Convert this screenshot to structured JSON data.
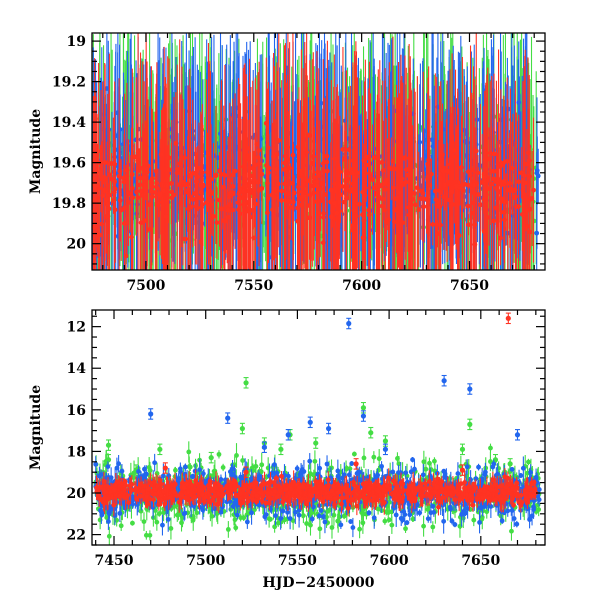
{
  "chart_data": [
    {
      "id": "top",
      "type": "scatter",
      "title": "",
      "xlabel": "",
      "ylabel": "Magnitude",
      "xlim": [
        7475,
        7685
      ],
      "ylim": [
        20.13,
        18.96
      ],
      "y_inverted": true,
      "x_ticks": [
        7500,
        7550,
        7600,
        7650
      ],
      "y_ticks": [
        19,
        19.2,
        19.4,
        19.6,
        19.8,
        20
      ],
      "x_tick_labels": [
        "7500",
        "7550",
        "7600",
        "7650"
      ],
      "y_tick_labels": [
        "19",
        "19.2",
        "19.4",
        "19.6",
        "19.8",
        "20"
      ],
      "grid": false,
      "legend": "none",
      "series": [
        {
          "color": "#44dd44",
          "x_range": [
            7475,
            7682
          ],
          "y_center": 19.65,
          "y_spread": 0.25,
          "dense_scatter": true
        },
        {
          "color": "#2266ee",
          "x_range": [
            7475,
            7682
          ],
          "y_center": 19.65,
          "y_spread": 0.25,
          "dense_scatter": true
        },
        {
          "color": "#ff3322",
          "x_range": [
            7475,
            7680
          ],
          "y_center": 19.72,
          "y_spread": 0.2,
          "dense_scatter": true
        }
      ]
    },
    {
      "id": "bottom",
      "type": "scatter",
      "title": "",
      "xlabel": "HJD−2450000",
      "ylabel": "Magnitude",
      "xlim": [
        7438,
        7685
      ],
      "ylim": [
        22.5,
        11.2
      ],
      "y_inverted": true,
      "x_ticks": [
        7450,
        7500,
        7550,
        7600,
        7650
      ],
      "y_ticks": [
        12,
        14,
        16,
        18,
        20,
        22
      ],
      "x_tick_labels": [
        "7450",
        "7500",
        "7550",
        "7600",
        "7650"
      ],
      "y_tick_labels": [
        "12",
        "14",
        "16",
        "18",
        "20",
        "22"
      ],
      "grid": false,
      "legend": "none",
      "series": [
        {
          "color": "#44dd44",
          "x_range": [
            7440,
            7682
          ],
          "y_center": 20.0,
          "y_spread": 1.4,
          "dense_scatter": true,
          "outliers": [
            [
              7447,
              18.4
            ],
            [
              7447,
              17.7
            ],
            [
              7462,
              18.9
            ],
            [
              7475,
              17.9
            ],
            [
              7503,
              18.3
            ],
            [
              7520,
              16.9
            ],
            [
              7522,
              14.7
            ],
            [
              7532,
              17.6
            ],
            [
              7541,
              17.9
            ],
            [
              7546,
              17.2
            ],
            [
              7560,
              17.6
            ],
            [
              7586,
              15.9
            ],
            [
              7590,
              17.1
            ],
            [
              7598,
              17.5
            ],
            [
              7640,
              17.9
            ],
            [
              7644,
              16.7
            ],
            [
              7658,
              18.4
            ],
            [
              7666,
              18.6
            ]
          ]
        },
        {
          "color": "#2266ee",
          "x_range": [
            7440,
            7682
          ],
          "y_center": 20.0,
          "y_spread": 1.1,
          "dense_scatter": true,
          "outliers": [
            [
              7470,
              16.2
            ],
            [
              7512,
              16.4
            ],
            [
              7532,
              17.8
            ],
            [
              7545,
              17.2
            ],
            [
              7557,
              16.6
            ],
            [
              7567,
              16.9
            ],
            [
              7578,
              11.85
            ],
            [
              7586,
              16.3
            ],
            [
              7598,
              17.9
            ],
            [
              7630,
              14.6
            ],
            [
              7644,
              15.0
            ],
            [
              7670,
              17.2
            ],
            [
              7675,
              20.2
            ]
          ]
        },
        {
          "color": "#ff3322",
          "x_range": [
            7440,
            7680
          ],
          "y_center": 19.95,
          "y_spread": 0.5,
          "dense_scatter": true,
          "outliers": [
            [
              7665,
              11.6
            ],
            [
              7478,
              18.8
            ],
            [
              7522,
              19.0
            ],
            [
              7582,
              18.6
            ],
            [
              7640,
              18.9
            ]
          ]
        }
      ]
    }
  ]
}
